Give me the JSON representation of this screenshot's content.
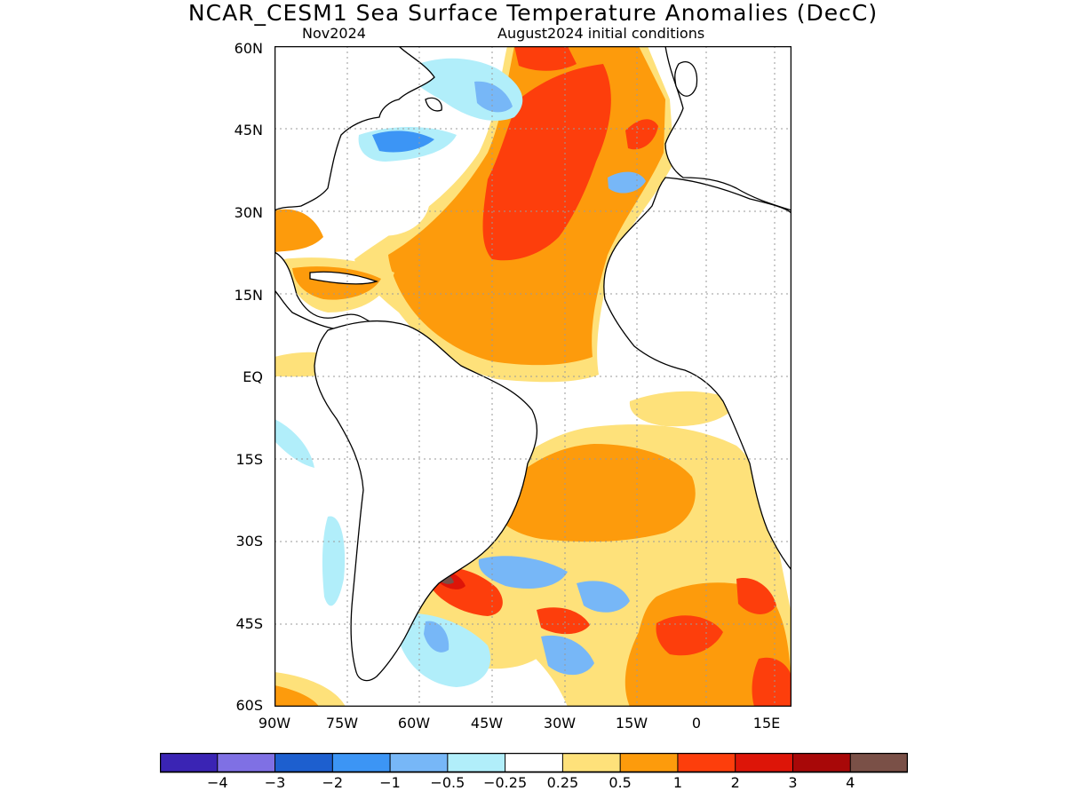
{
  "title": "NCAR_CESM1 Sea Surface Temperature Anomalies (DecC)",
  "subtitle_left": "Nov2024",
  "subtitle_right": "August2024 initial conditions",
  "lat_labels": [
    "60N",
    "45N",
    "30N",
    "15N",
    "EQ",
    "15S",
    "30S",
    "45S",
    "60S"
  ],
  "lon_labels": [
    "90W",
    "75W",
    "60W",
    "45W",
    "30W",
    "15W",
    "0",
    "15E"
  ],
  "colorbar": {
    "colors": [
      "#3a24b4",
      "#7f70e4",
      "#1d5fcf",
      "#3c95f5",
      "#77b7f7",
      "#b1eefa",
      "#ffffff",
      "#fee17a",
      "#fd9b0c",
      "#fd3e0c",
      "#dd1508",
      "#a80808",
      "#7a5047"
    ],
    "labels": [
      "−4",
      "−3",
      "−2",
      "−1",
      "−0.5",
      "−0.25",
      "0.25",
      "0.5",
      "1",
      "2",
      "3",
      "4"
    ]
  },
  "palette": {
    "land_outline": "#000000",
    "grid": "#9a9a9a"
  }
}
